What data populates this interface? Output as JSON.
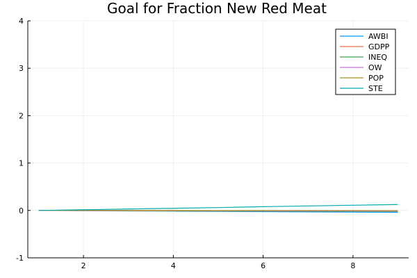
{
  "chart_data": {
    "type": "line",
    "title": "Goal for Fraction New Red Meat",
    "xlabel": "",
    "ylabel": "",
    "xlim": [
      0.76,
      9.24
    ],
    "ylim": [
      -1,
      4
    ],
    "xticks": [
      2,
      4,
      6,
      8
    ],
    "yticks": [
      -1,
      0,
      1,
      2,
      3,
      4
    ],
    "grid": true,
    "legend_position": "top-right",
    "x": [
      1,
      2,
      3,
      4,
      5,
      6,
      7,
      8,
      9
    ],
    "series": [
      {
        "name": "AWBI",
        "color": "#009AFA",
        "values": [
          0,
          -0.005,
          -0.01,
          -0.015,
          -0.02,
          -0.025,
          -0.03,
          -0.035,
          -0.04
        ]
      },
      {
        "name": "GDPP",
        "color": "#E36F47",
        "values": [
          0,
          -0.003,
          -0.006,
          -0.009,
          -0.011,
          -0.013,
          -0.015,
          -0.017,
          -0.019
        ]
      },
      {
        "name": "INEQ",
        "color": "#3EA44E",
        "values": [
          0,
          -0.002,
          -0.004,
          -0.006,
          -0.008,
          -0.01,
          -0.012,
          -0.014,
          -0.016
        ]
      },
      {
        "name": "OW",
        "color": "#C371D2",
        "values": [
          0,
          -0.001,
          -0.003,
          -0.004,
          -0.005,
          -0.006,
          -0.008,
          -0.009,
          -0.01
        ]
      },
      {
        "name": "POP",
        "color": "#AC8E18",
        "values": [
          0,
          0.0,
          -0.001,
          -0.001,
          -0.002,
          -0.002,
          -0.003,
          -0.003,
          -0.004
        ]
      },
      {
        "name": "STE",
        "color": "#00AAAE",
        "values": [
          0,
          0.015,
          0.03,
          0.045,
          0.06,
          0.08,
          0.095,
          0.11,
          0.125
        ]
      }
    ]
  }
}
